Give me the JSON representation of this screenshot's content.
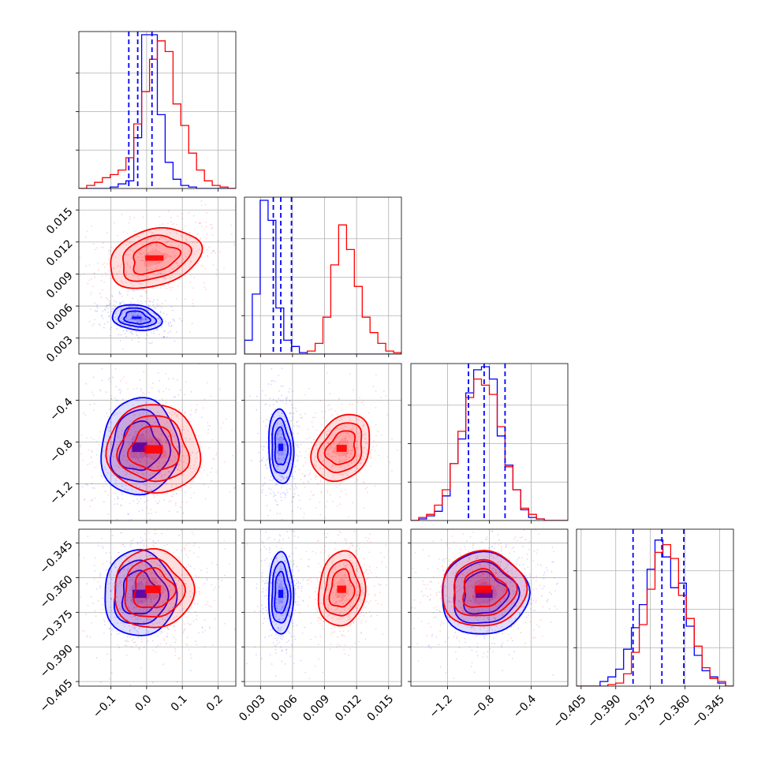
{
  "chart_data": {
    "type": "corner",
    "grid": true,
    "series": [
      {
        "color": "#0000ff",
        "quantile_line_style": "dashed"
      },
      {
        "color": "#ff0000"
      }
    ],
    "parameter_ticks": [
      {
        "values": [
          -0.1,
          0.0,
          0.1,
          0.2
        ],
        "labels": [
          "−0.1",
          "0.0",
          "0.1",
          "0.2"
        ]
      },
      {
        "values": [
          0.003,
          0.006,
          0.009,
          0.012,
          0.015
        ],
        "labels": [
          "0.003",
          "0.006",
          "0.009",
          "0.012",
          "0.015"
        ]
      },
      {
        "values": [
          -1.2,
          -0.8,
          -0.4
        ],
        "labels": [
          "−1.2",
          "−0.8",
          "−0.4"
        ]
      },
      {
        "values": [
          -0.405,
          -0.39,
          -0.375,
          -0.36,
          -0.345
        ],
        "labels": [
          "−0.405",
          "−0.390",
          "−0.375",
          "−0.360",
          "−0.345"
        ]
      }
    ],
    "parameter_ranges": [
      [
        -0.19,
        0.25
      ],
      [
        0.0015,
        0.0162
      ],
      [
        -1.55,
        -0.05
      ],
      [
        -0.407,
        -0.339
      ]
    ],
    "blue_quantiles": [
      [
        -0.05,
        -0.025,
        0.015
      ],
      [
        0.0042,
        0.0049,
        0.0059
      ],
      [
        -1.0,
        -0.85,
        -0.65
      ],
      [
        -0.3825,
        -0.37,
        -0.3605
      ]
    ],
    "histograms": {
      "blue": [
        [
          0,
          0,
          0,
          0,
          0.01,
          0.03,
          0.05,
          0.33,
          1.0,
          1.0,
          0.48,
          0.17,
          0.06,
          0.02,
          0.01,
          0,
          0,
          0,
          0,
          0
        ],
        [
          0.09,
          0.39,
          1.0,
          0.87,
          0.3,
          0.09,
          0.05,
          0.01,
          0,
          0,
          0,
          0,
          0,
          0,
          0,
          0,
          0,
          0,
          0,
          0
        ],
        [
          0,
          0.01,
          0.03,
          0.06,
          0.16,
          0.37,
          0.53,
          0.83,
          0.98,
          1.0,
          0.92,
          0.55,
          0.36,
          0.2,
          0.07,
          0.02,
          0.01,
          0,
          0,
          0
        ],
        [
          0,
          0,
          0,
          0.03,
          0.06,
          0.11,
          0.24,
          0.38,
          0.53,
          0.76,
          0.95,
          0.84,
          0.64,
          0.67,
          0.39,
          0.2,
          0.1,
          0.06,
          0.02,
          0
        ]
      ],
      "red": [
        [
          0,
          0.02,
          0.04,
          0.07,
          0.09,
          0.12,
          0.2,
          0.42,
          0.63,
          0.84,
          0.96,
          0.89,
          0.55,
          0.41,
          0.23,
          0.12,
          0.05,
          0.02,
          0.01,
          0
        ],
        [
          0,
          0,
          0,
          0,
          0,
          0,
          0,
          0,
          0.02,
          0.07,
          0.24,
          0.58,
          0.84,
          0.68,
          0.44,
          0.24,
          0.14,
          0.07,
          0.02,
          0.01
        ],
        [
          0,
          0.02,
          0.04,
          0.1,
          0.2,
          0.37,
          0.58,
          0.8,
          0.92,
          0.88,
          0.82,
          0.61,
          0.35,
          0.2,
          0.08,
          0.04,
          0.01,
          0,
          0,
          0
        ],
        [
          0,
          0,
          0,
          0,
          0.01,
          0.02,
          0.08,
          0.22,
          0.4,
          0.63,
          0.87,
          0.92,
          0.83,
          0.59,
          0.44,
          0.26,
          0.12,
          0.05,
          0.03,
          0
        ]
      ]
    },
    "blobs": {
      "blue": [
        {
          "row": 1,
          "col": 0,
          "center": [
            -0.028,
            0.0049
          ],
          "radius": [
            0.045,
            0.00075
          ],
          "tilt": -0.15
        },
        {
          "row": 2,
          "col": 0,
          "center": [
            -0.02,
            -0.85
          ],
          "radius": [
            0.07,
            0.3
          ],
          "tilt": -0.1
        },
        {
          "row": 2,
          "col": 1,
          "center": [
            0.0049,
            -0.85
          ],
          "radius": [
            0.00075,
            0.23
          ],
          "tilt": 0.05
        },
        {
          "row": 3,
          "col": 0,
          "center": [
            -0.02,
            -0.367
          ],
          "radius": [
            0.065,
            0.012
          ],
          "tilt": 0.05
        },
        {
          "row": 3,
          "col": 1,
          "center": [
            0.0049,
            -0.367
          ],
          "radius": [
            0.00075,
            0.0115
          ],
          "tilt": 0.0
        },
        {
          "row": 3,
          "col": 2,
          "center": [
            -0.85,
            -0.367
          ],
          "radius": [
            0.27,
            0.0115
          ],
          "tilt": 0.15
        }
      ],
      "red": [
        {
          "row": 1,
          "col": 0,
          "center": [
            0.022,
            0.0105
          ],
          "radius": [
            0.085,
            0.0017
          ],
          "tilt": 0.28
        },
        {
          "row": 2,
          "col": 0,
          "center": [
            0.02,
            -0.87
          ],
          "radius": [
            0.085,
            0.27
          ],
          "tilt": -0.35
        },
        {
          "row": 2,
          "col": 1,
          "center": [
            0.0106,
            -0.86
          ],
          "radius": [
            0.0016,
            0.22
          ],
          "tilt": -0.55
        },
        {
          "row": 3,
          "col": 0,
          "center": [
            0.018,
            -0.365
          ],
          "radius": [
            0.072,
            0.011
          ],
          "tilt": 0.05
        },
        {
          "row": 3,
          "col": 1,
          "center": [
            0.0106,
            -0.365
          ],
          "radius": [
            0.0014,
            0.0105
          ],
          "tilt": -0.1
        },
        {
          "row": 3,
          "col": 2,
          "center": [
            -0.86,
            -0.365
          ],
          "radius": [
            0.26,
            0.0105
          ],
          "tilt": 0.1
        }
      ]
    }
  }
}
